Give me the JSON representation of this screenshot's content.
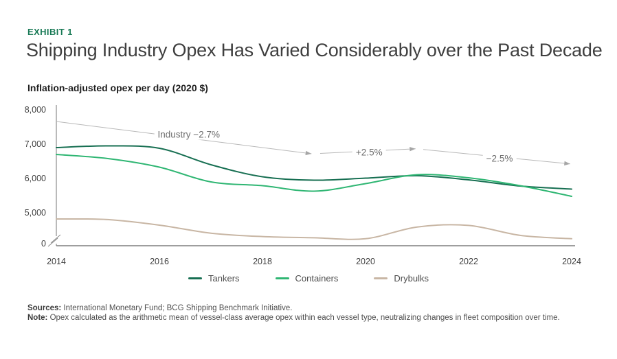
{
  "header": {
    "exhibit_label": "EXHIBIT 1",
    "title": "Shipping Industry Opex Has Varied Considerably over the Past Decade",
    "subtitle": "Inflation-adjusted opex per day (2020 $)"
  },
  "chart_data": {
    "type": "line",
    "title": "Shipping Industry Opex Has Varied Considerably over the Past Decade",
    "ylabel": "Inflation-adjusted opex per day (2020 $)",
    "x": [
      2014,
      2015,
      2016,
      2017,
      2018,
      2019,
      2020,
      2021,
      2022,
      2023,
      2024
    ],
    "x_axis": {
      "ticks": [
        {
          "value": 2014,
          "label": "2014"
        },
        {
          "value": 2016,
          "label": "2016"
        },
        {
          "value": 2018,
          "label": "2018"
        },
        {
          "value": 2020,
          "label": "2020"
        },
        {
          "value": 2022,
          "label": "2022"
        },
        {
          "value": 2024,
          "label": "2024"
        }
      ],
      "range": [
        2014,
        2024
      ]
    },
    "y_axis": {
      "ticks": [
        {
          "value": 0,
          "label": "0"
        },
        {
          "value": 5000,
          "label": "5,000"
        },
        {
          "value": 6000,
          "label": "6,000"
        },
        {
          "value": 7000,
          "label": "7,000"
        },
        {
          "value": 8000,
          "label": "8,000"
        }
      ],
      "range": [
        0,
        8000
      ],
      "broken_axis": true,
      "break_between": [
        0,
        5000
      ],
      "grid": false
    },
    "series": [
      {
        "name": "Tankers",
        "color": "#176f52",
        "values": [
          6900,
          6950,
          6880,
          6400,
          6050,
          5950,
          6010,
          6080,
          5960,
          5780,
          5690
        ]
      },
      {
        "name": "Containers",
        "color": "#2fb673",
        "values": [
          6700,
          6580,
          6330,
          5900,
          5790,
          5630,
          5850,
          6110,
          6020,
          5790,
          5480
        ]
      },
      {
        "name": "Drybulks",
        "color": "#c8b6a4",
        "values": [
          4000,
          3900,
          3000,
          1700,
          1150,
          950,
          800,
          2700,
          2950,
          1350,
          800
        ]
      }
    ],
    "annotations": {
      "color": "#b8b8b8",
      "arrow_color": "#a6a6a6",
      "segments": [
        {
          "label": "Industry −2.7%",
          "from": {
            "x": 2014,
            "y": 7660
          },
          "to": {
            "x": 2018.95,
            "y": 6720
          },
          "label_at": {
            "x": 2016.57,
            "y": 7290
          }
        },
        {
          "label": "+2.5%",
          "from": {
            "x": 2019.12,
            "y": 6730
          },
          "to": {
            "x": 2020.97,
            "y": 6865
          },
          "label_at": {
            "x": 2020.07,
            "y": 6770
          }
        },
        {
          "label": "−2.5%",
          "from": {
            "x": 2021.12,
            "y": 6845
          },
          "to": {
            "x": 2023.97,
            "y": 6425
          },
          "label_at": {
            "x": 2022.6,
            "y": 6585
          }
        }
      ]
    },
    "legend": {
      "position": "bottom-center",
      "items": [
        "Tankers",
        "Containers",
        "Drybulks"
      ]
    }
  },
  "footer": {
    "sources_label": "Sources:",
    "sources_text": " International Monetary Fund; BCG Shipping Benchmark Initiative.",
    "note_label": "Note:",
    "note_text": " Opex calculated as the arithmetic mean of vessel-class average opex within each vessel type, neutralizing changes in fleet composition over time."
  }
}
